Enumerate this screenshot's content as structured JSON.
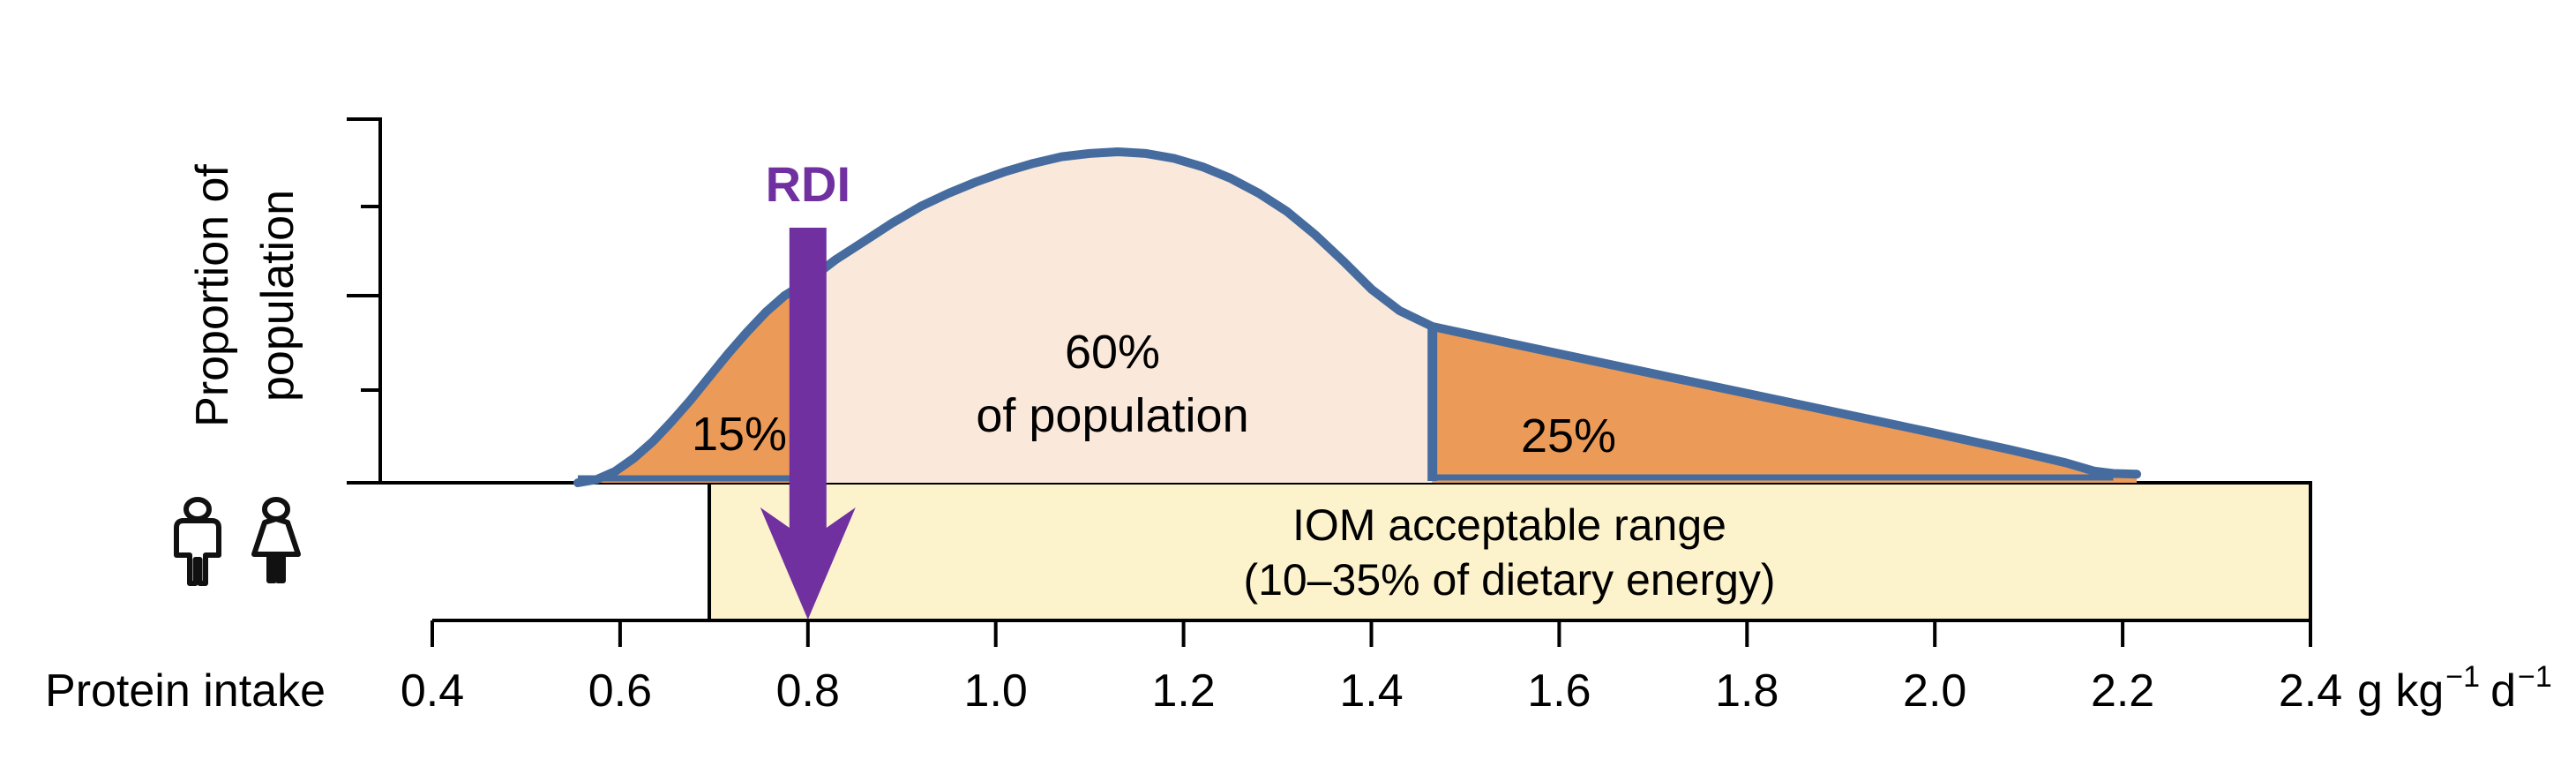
{
  "figure": {
    "background": "#ffffff"
  },
  "chart_data": {
    "type": "area",
    "title": "",
    "xlabel": "Protein intake",
    "ylabel_line1": "Proportion of",
    "ylabel_line2": "population",
    "x_unit_parts": [
      "g kg",
      "−1",
      "d",
      "−1"
    ],
    "xlim": [
      0.4,
      2.4
    ],
    "ylim": [
      0,
      1
    ],
    "grid": false,
    "x_ticks": [
      0.4,
      0.6,
      0.8,
      1.0,
      1.2,
      1.4,
      1.6,
      1.8,
      2.0,
      2.2,
      2.4
    ],
    "x_tick_labels": [
      "0.4",
      "0.6",
      "0.8",
      "1.0",
      "1.2",
      "1.4",
      "1.6",
      "1.8",
      "2.0",
      "2.2",
      "2.4"
    ],
    "y_ticks_unlabeled": 4,
    "curve_points": [
      [
        0.555,
        0
      ],
      [
        0.575,
        0.01
      ],
      [
        0.595,
        0.035
      ],
      [
        0.615,
        0.075
      ],
      [
        0.635,
        0.125
      ],
      [
        0.655,
        0.185
      ],
      [
        0.675,
        0.25
      ],
      [
        0.695,
        0.32
      ],
      [
        0.715,
        0.39
      ],
      [
        0.735,
        0.455
      ],
      [
        0.755,
        0.515
      ],
      [
        0.775,
        0.565
      ],
      [
        0.8,
        0.61
      ],
      [
        0.83,
        0.675
      ],
      [
        0.86,
        0.73
      ],
      [
        0.89,
        0.785
      ],
      [
        0.92,
        0.835
      ],
      [
        0.95,
        0.875
      ],
      [
        0.98,
        0.91
      ],
      [
        1.01,
        0.94
      ],
      [
        1.04,
        0.965
      ],
      [
        1.07,
        0.985
      ],
      [
        1.1,
        0.995
      ],
      [
        1.13,
        1.0
      ],
      [
        1.16,
        0.995
      ],
      [
        1.19,
        0.98
      ],
      [
        1.22,
        0.955
      ],
      [
        1.25,
        0.92
      ],
      [
        1.28,
        0.875
      ],
      [
        1.31,
        0.82
      ],
      [
        1.34,
        0.75
      ],
      [
        1.37,
        0.67
      ],
      [
        1.4,
        0.585
      ],
      [
        1.43,
        0.52
      ],
      [
        1.465,
        0.472
      ],
      [
        1.55,
        0.42
      ],
      [
        1.7,
        0.33
      ],
      [
        1.85,
        0.24
      ],
      [
        2.0,
        0.15
      ],
      [
        2.08,
        0.1
      ],
      [
        2.14,
        0.06
      ],
      [
        2.17,
        0.035
      ],
      [
        2.19,
        0.028
      ],
      [
        2.215,
        0.026
      ]
    ],
    "regions": [
      {
        "name": "below-rdi",
        "percent": 15,
        "label": "15%",
        "x_from": 0.555,
        "x_to": 0.8
      },
      {
        "name": "mid-population",
        "percent": 60,
        "label_line1": "60%",
        "label_line2": "of population",
        "x_from": 0.8,
        "x_to": 1.465
      },
      {
        "name": "upper-intake",
        "percent": 25,
        "label": "25%",
        "x_from": 1.465,
        "x_to": 2.215
      }
    ],
    "rdi": {
      "label": "RDI",
      "x": 0.8
    },
    "iom_box": {
      "x_from": 0.695,
      "x_to": 2.4,
      "line1": "IOM acceptable range",
      "line2": "(10–35% of dietary energy)"
    },
    "icons": [
      "male-icon",
      "female-icon"
    ],
    "colors": {
      "curve_stroke": "#466c9f",
      "region_orange": "#ec9a57",
      "region_peach": "#fae8da",
      "iom_fill": "#fcf2cb",
      "rdi_purple": "#7030a0",
      "axis_black": "#000000"
    },
    "legend": null
  }
}
